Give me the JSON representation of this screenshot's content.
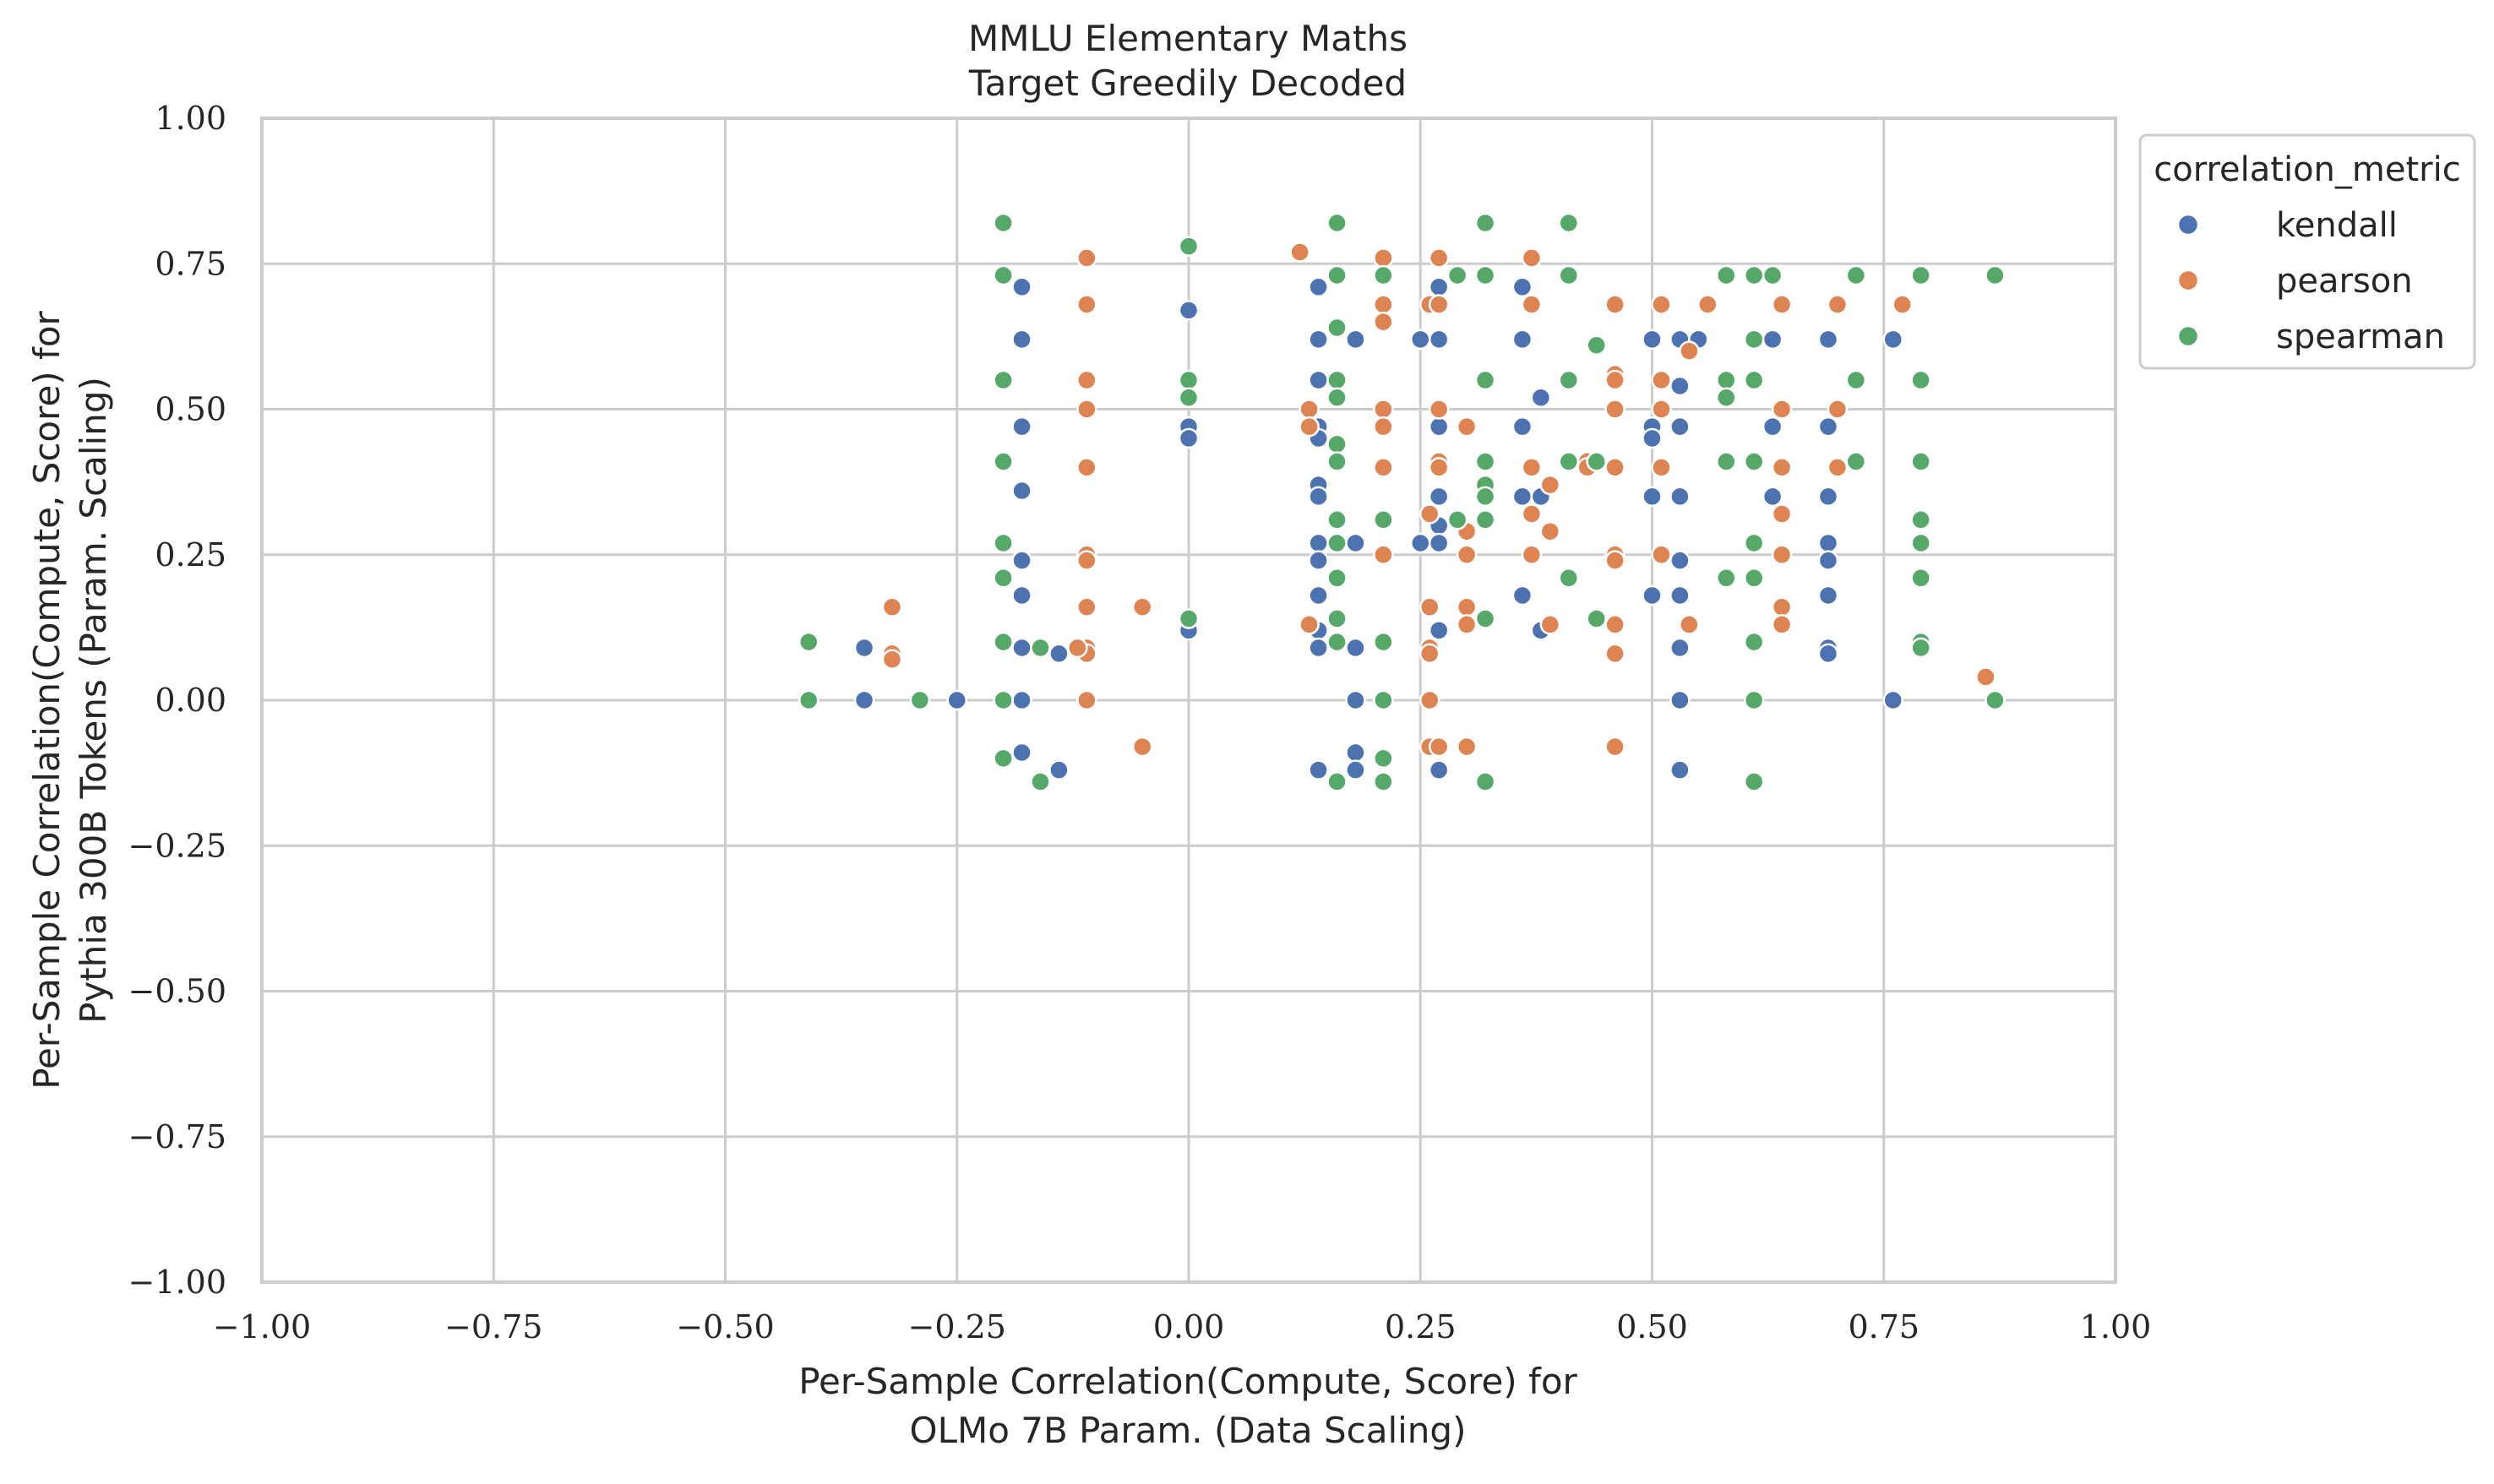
{
  "chart_data": {
    "type": "scatter",
    "title": "MMLU Elementary Maths",
    "subtitle": "Target Greedily Decoded",
    "xlabel_line1": "Per-Sample Correlation(Compute, Score) for",
    "xlabel_line2": "OLMo 7B Param. (Data Scaling)",
    "ylabel_line1": "Per-Sample Correlation(Compute, Score) for",
    "ylabel_line2": "Pythia 300B Tokens (Param. Scaling)",
    "xlim": [
      -1.0,
      1.0
    ],
    "ylim": [
      -1.0,
      1.0
    ],
    "grid": true,
    "xticks": [
      "−1.00",
      "−0.75",
      "−0.50",
      "−0.25",
      "0.00",
      "0.25",
      "0.50",
      "0.75",
      "1.00"
    ],
    "yticks": [
      "1.00",
      "0.75",
      "0.50",
      "0.25",
      "0.00",
      "−0.25",
      "−0.50",
      "−0.75",
      "−1.00"
    ],
    "legend": {
      "title": "correlation_metric",
      "placement": "outside-top-right"
    },
    "series": [
      {
        "name": "kendall",
        "color": "#4c72b0",
        "points": [
          [
            -0.35,
            0.09
          ],
          [
            -0.35,
            0.0
          ],
          [
            -0.25,
            0.0
          ],
          [
            -0.18,
            0.71
          ],
          [
            -0.18,
            0.62
          ],
          [
            -0.18,
            0.47
          ],
          [
            -0.18,
            0.36
          ],
          [
            -0.18,
            0.24
          ],
          [
            -0.18,
            0.18
          ],
          [
            -0.18,
            0.09
          ],
          [
            -0.18,
            0.0
          ],
          [
            -0.18,
            -0.09
          ],
          [
            -0.14,
            0.08
          ],
          [
            -0.14,
            -0.12
          ],
          [
            0.0,
            0.67
          ],
          [
            0.0,
            0.47
          ],
          [
            0.0,
            0.45
          ],
          [
            0.0,
            0.12
          ],
          [
            0.14,
            0.71
          ],
          [
            0.14,
            0.62
          ],
          [
            0.14,
            0.55
          ],
          [
            0.14,
            0.47
          ],
          [
            0.14,
            0.45
          ],
          [
            0.14,
            0.37
          ],
          [
            0.14,
            0.35
          ],
          [
            0.14,
            0.27
          ],
          [
            0.14,
            0.24
          ],
          [
            0.14,
            0.18
          ],
          [
            0.14,
            0.12
          ],
          [
            0.14,
            0.09
          ],
          [
            0.14,
            -0.12
          ],
          [
            0.18,
            0.62
          ],
          [
            0.18,
            0.27
          ],
          [
            0.18,
            0.09
          ],
          [
            0.18,
            0.0
          ],
          [
            0.18,
            -0.09
          ],
          [
            0.18,
            -0.12
          ],
          [
            0.25,
            0.62
          ],
          [
            0.25,
            0.27
          ],
          [
            0.27,
            0.71
          ],
          [
            0.27,
            0.62
          ],
          [
            0.27,
            0.47
          ],
          [
            0.27,
            0.35
          ],
          [
            0.27,
            0.3
          ],
          [
            0.27,
            0.27
          ],
          [
            0.27,
            0.12
          ],
          [
            0.27,
            -0.12
          ],
          [
            0.36,
            0.71
          ],
          [
            0.36,
            0.62
          ],
          [
            0.36,
            0.47
          ],
          [
            0.36,
            0.35
          ],
          [
            0.36,
            0.18
          ],
          [
            0.38,
            0.52
          ],
          [
            0.38,
            0.35
          ],
          [
            0.38,
            0.12
          ],
          [
            0.5,
            0.62
          ],
          [
            0.5,
            0.47
          ],
          [
            0.5,
            0.45
          ],
          [
            0.5,
            0.35
          ],
          [
            0.5,
            0.18
          ],
          [
            0.53,
            0.62
          ],
          [
            0.53,
            0.54
          ],
          [
            0.53,
            0.47
          ],
          [
            0.53,
            0.35
          ],
          [
            0.53,
            0.24
          ],
          [
            0.53,
            0.18
          ],
          [
            0.53,
            0.09
          ],
          [
            0.53,
            0.0
          ],
          [
            0.53,
            -0.12
          ],
          [
            0.55,
            0.62
          ],
          [
            0.63,
            0.62
          ],
          [
            0.63,
            0.47
          ],
          [
            0.63,
            0.35
          ],
          [
            0.69,
            0.62
          ],
          [
            0.69,
            0.47
          ],
          [
            0.69,
            0.35
          ],
          [
            0.69,
            0.27
          ],
          [
            0.69,
            0.24
          ],
          [
            0.69,
            0.18
          ],
          [
            0.69,
            0.09
          ],
          [
            0.69,
            0.08
          ],
          [
            0.76,
            0.62
          ],
          [
            0.76,
            0.0
          ]
        ]
      },
      {
        "name": "pearson",
        "color": "#dd8452",
        "points": [
          [
            -0.32,
            0.16
          ],
          [
            -0.32,
            0.08
          ],
          [
            -0.32,
            0.07
          ],
          [
            -0.11,
            0.76
          ],
          [
            -0.11,
            0.68
          ],
          [
            -0.11,
            0.55
          ],
          [
            -0.11,
            0.5
          ],
          [
            -0.11,
            0.4
          ],
          [
            -0.11,
            0.25
          ],
          [
            -0.11,
            0.24
          ],
          [
            -0.11,
            0.16
          ],
          [
            -0.11,
            0.09
          ],
          [
            -0.11,
            0.08
          ],
          [
            -0.11,
            0.0
          ],
          [
            -0.12,
            0.09
          ],
          [
            -0.05,
            0.16
          ],
          [
            -0.05,
            -0.08
          ],
          [
            0.12,
            0.77
          ],
          [
            0.13,
            0.5
          ],
          [
            0.13,
            0.47
          ],
          [
            0.13,
            0.13
          ],
          [
            0.21,
            0.76
          ],
          [
            0.21,
            0.68
          ],
          [
            0.21,
            0.65
          ],
          [
            0.21,
            0.5
          ],
          [
            0.21,
            0.47
          ],
          [
            0.21,
            0.4
          ],
          [
            0.21,
            0.25
          ],
          [
            0.26,
            0.68
          ],
          [
            0.26,
            0.32
          ],
          [
            0.26,
            0.16
          ],
          [
            0.26,
            0.09
          ],
          [
            0.26,
            0.08
          ],
          [
            0.26,
            0.0
          ],
          [
            0.26,
            -0.08
          ],
          [
            0.27,
            0.76
          ],
          [
            0.27,
            0.68
          ],
          [
            0.27,
            0.5
          ],
          [
            0.27,
            0.41
          ],
          [
            0.27,
            0.4
          ],
          [
            0.27,
            -0.08
          ],
          [
            0.3,
            0.47
          ],
          [
            0.3,
            0.29
          ],
          [
            0.3,
            0.25
          ],
          [
            0.3,
            0.16
          ],
          [
            0.3,
            0.13
          ],
          [
            0.3,
            -0.08
          ],
          [
            0.37,
            0.76
          ],
          [
            0.37,
            0.68
          ],
          [
            0.37,
            0.4
          ],
          [
            0.37,
            0.32
          ],
          [
            0.37,
            0.25
          ],
          [
            0.39,
            0.37
          ],
          [
            0.39,
            0.29
          ],
          [
            0.39,
            0.13
          ],
          [
            0.43,
            0.41
          ],
          [
            0.43,
            0.4
          ],
          [
            0.46,
            0.68
          ],
          [
            0.46,
            0.56
          ],
          [
            0.46,
            0.55
          ],
          [
            0.46,
            0.5
          ],
          [
            0.46,
            0.4
          ],
          [
            0.46,
            0.25
          ],
          [
            0.46,
            0.24
          ],
          [
            0.46,
            0.13
          ],
          [
            0.46,
            0.08
          ],
          [
            0.46,
            -0.08
          ],
          [
            0.51,
            0.68
          ],
          [
            0.51,
            0.55
          ],
          [
            0.51,
            0.5
          ],
          [
            0.51,
            0.4
          ],
          [
            0.51,
            0.25
          ],
          [
            0.54,
            0.6
          ],
          [
            0.54,
            0.13
          ],
          [
            0.56,
            0.68
          ],
          [
            0.64,
            0.68
          ],
          [
            0.64,
            0.5
          ],
          [
            0.64,
            0.4
          ],
          [
            0.64,
            0.32
          ],
          [
            0.64,
            0.25
          ],
          [
            0.64,
            0.16
          ],
          [
            0.64,
            0.13
          ],
          [
            0.7,
            0.68
          ],
          [
            0.7,
            0.5
          ],
          [
            0.7,
            0.4
          ],
          [
            0.77,
            0.68
          ],
          [
            0.86,
            0.04
          ]
        ]
      },
      {
        "name": "spearman",
        "color": "#55a868",
        "points": [
          [
            -0.41,
            0.1
          ],
          [
            -0.41,
            0.0
          ],
          [
            -0.29,
            0.0
          ],
          [
            -0.2,
            0.82
          ],
          [
            -0.2,
            0.73
          ],
          [
            -0.2,
            0.55
          ],
          [
            -0.2,
            0.41
          ],
          [
            -0.2,
            0.27
          ],
          [
            -0.2,
            0.21
          ],
          [
            -0.2,
            0.1
          ],
          [
            -0.2,
            0.0
          ],
          [
            -0.2,
            -0.1
          ],
          [
            -0.16,
            0.09
          ],
          [
            -0.16,
            -0.14
          ],
          [
            0.0,
            0.78
          ],
          [
            0.0,
            0.55
          ],
          [
            0.0,
            0.52
          ],
          [
            0.0,
            0.14
          ],
          [
            0.16,
            0.82
          ],
          [
            0.16,
            0.73
          ],
          [
            0.16,
            0.64
          ],
          [
            0.16,
            0.55
          ],
          [
            0.16,
            0.52
          ],
          [
            0.16,
            0.44
          ],
          [
            0.16,
            0.41
          ],
          [
            0.16,
            0.31
          ],
          [
            0.16,
            0.27
          ],
          [
            0.16,
            0.21
          ],
          [
            0.16,
            0.14
          ],
          [
            0.16,
            0.1
          ],
          [
            0.16,
            -0.14
          ],
          [
            0.21,
            0.73
          ],
          [
            0.21,
            0.31
          ],
          [
            0.21,
            0.1
          ],
          [
            0.21,
            0.0
          ],
          [
            0.21,
            -0.1
          ],
          [
            0.21,
            -0.14
          ],
          [
            0.29,
            0.73
          ],
          [
            0.29,
            0.31
          ],
          [
            0.32,
            0.82
          ],
          [
            0.32,
            0.73
          ],
          [
            0.32,
            0.55
          ],
          [
            0.32,
            0.41
          ],
          [
            0.32,
            0.37
          ],
          [
            0.32,
            0.35
          ],
          [
            0.32,
            0.31
          ],
          [
            0.32,
            0.14
          ],
          [
            0.32,
            -0.14
          ],
          [
            0.41,
            0.82
          ],
          [
            0.41,
            0.73
          ],
          [
            0.41,
            0.55
          ],
          [
            0.41,
            0.41
          ],
          [
            0.41,
            0.21
          ],
          [
            0.44,
            0.61
          ],
          [
            0.44,
            0.41
          ],
          [
            0.44,
            0.14
          ],
          [
            0.58,
            0.73
          ],
          [
            0.58,
            0.55
          ],
          [
            0.58,
            0.52
          ],
          [
            0.58,
            0.41
          ],
          [
            0.58,
            0.21
          ],
          [
            0.61,
            0.73
          ],
          [
            0.61,
            0.62
          ],
          [
            0.61,
            0.55
          ],
          [
            0.61,
            0.41
          ],
          [
            0.61,
            0.27
          ],
          [
            0.61,
            0.21
          ],
          [
            0.61,
            0.1
          ],
          [
            0.61,
            0.0
          ],
          [
            0.61,
            -0.14
          ],
          [
            0.63,
            0.73
          ],
          [
            0.72,
            0.73
          ],
          [
            0.72,
            0.55
          ],
          [
            0.72,
            0.41
          ],
          [
            0.79,
            0.73
          ],
          [
            0.79,
            0.55
          ],
          [
            0.79,
            0.41
          ],
          [
            0.79,
            0.31
          ],
          [
            0.79,
            0.27
          ],
          [
            0.79,
            0.21
          ],
          [
            0.79,
            0.1
          ],
          [
            0.79,
            0.09
          ],
          [
            0.87,
            0.73
          ],
          [
            0.87,
            0.0
          ]
        ]
      }
    ]
  }
}
